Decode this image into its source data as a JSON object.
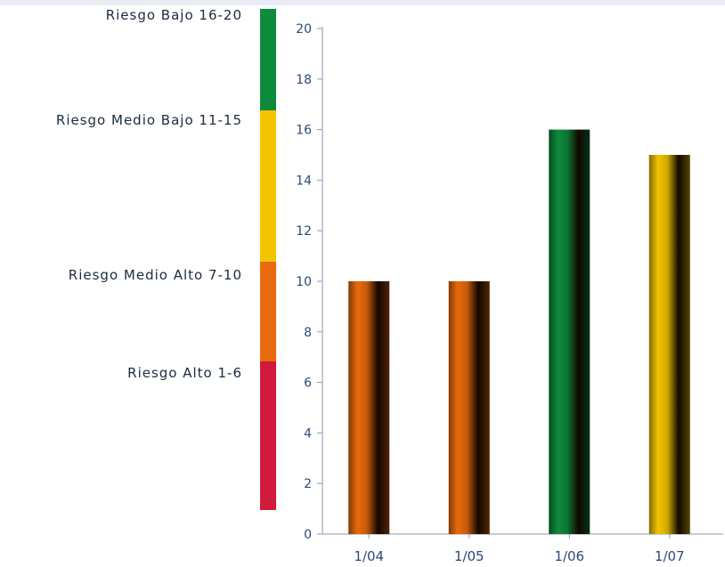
{
  "chart_data": {
    "type": "bar",
    "categories": [
      "1/04",
      "1/05",
      "1/06",
      "1/07"
    ],
    "values": [
      10,
      10,
      16,
      15
    ],
    "bar_colors": [
      "#e86a0c",
      "#e86a0c",
      "#0e8a3c",
      "#f2c500"
    ],
    "ylim": [
      0,
      20
    ],
    "yticks": [
      0,
      2,
      4,
      6,
      8,
      10,
      12,
      14,
      16,
      18,
      20
    ],
    "grid": false,
    "title": "",
    "xlabel": "",
    "ylabel": "",
    "risk_scale": [
      {
        "label": "Riesgo Bajo 16-20",
        "range": [
          16,
          20
        ],
        "color": "#0e8a3c"
      },
      {
        "label": "Riesgo Medio Bajo 11-15",
        "range": [
          11,
          15
        ],
        "color": "#f2c500"
      },
      {
        "label": "Riesgo Medio Alto 7-10",
        "range": [
          7,
          10
        ],
        "color": "#e86a0c"
      },
      {
        "label": "Riesgo Alto 1-6",
        "range": [
          1,
          6
        ],
        "color": "#d21a3c"
      }
    ]
  },
  "colors": {
    "axis": "#8a9bb0",
    "tick_text": "#2d4a78",
    "legend_text": "#1c2a40"
  }
}
